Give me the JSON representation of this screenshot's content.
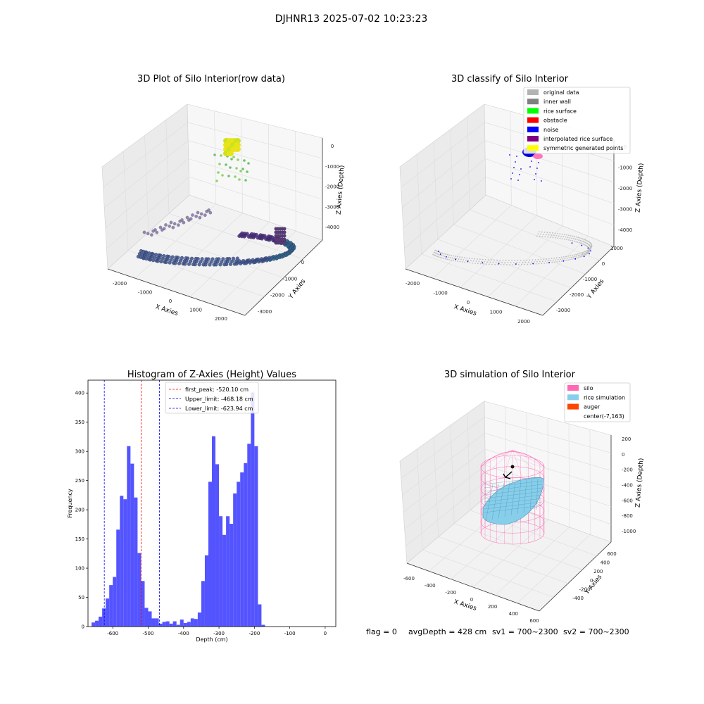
{
  "suptitle": "DJHNR13 2025-07-02 10:23:23",
  "footer": {
    "flag": "flag = 0",
    "avg": "avgDepth = 428 cm",
    "sv1": "sv1 = 700~2300",
    "sv2": "sv2 = 700~2300"
  },
  "chart_data": [
    {
      "type": "scatter",
      "projection": "3d",
      "title": "3D Plot of Silo Interior(row data)",
      "xlabel": "X Axies",
      "ylabel": "Y Axies",
      "zlabel": "Z Axies (Depth)",
      "xticks": [
        "-2000",
        "-1000",
        "0",
        "1000",
        "2000"
      ],
      "yticks": [
        "0",
        "-1000",
        "-2000",
        "-3000"
      ],
      "zticks": [
        "0",
        "-1000",
        "-2000",
        "-3000",
        "-4000"
      ],
      "colormap": "viridis",
      "grid": true
    },
    {
      "type": "scatter",
      "projection": "3d",
      "title": "3D classify of Silo Interior",
      "xlabel": "X Axies",
      "ylabel": "Y Axies",
      "zlabel": "Z Axies (Depth)",
      "xticks": [
        "-2000",
        "-1000",
        "0",
        "1000",
        "2000"
      ],
      "yticks": [
        "1000",
        "0",
        "-1000",
        "-2000",
        "-3000"
      ],
      "zticks": [
        "0",
        "-1000",
        "-2000",
        "-3000",
        "-4000"
      ],
      "legend_position": "top-right",
      "legend": [
        {
          "label": "original data",
          "color": "#b3b3b3"
        },
        {
          "label": "inner wall",
          "color": "#808080"
        },
        {
          "label": "rice surface",
          "color": "#00ff00"
        },
        {
          "label": "obstacle",
          "color": "#ff0000"
        },
        {
          "label": "noise",
          "color": "#0000ff"
        },
        {
          "label": "interpolated rice surface",
          "color": "#800080"
        },
        {
          "label": "symmetric generated points",
          "color": "#ffff00"
        }
      ],
      "grid": true
    },
    {
      "type": "bar",
      "title": "Histogram of Z-Axies (Height) Values",
      "xlabel": "Depth (cm)",
      "ylabel": "Frequency",
      "xlim": [
        -670,
        30
      ],
      "ylim": [
        0,
        422
      ],
      "xticks": [
        -600,
        -500,
        -400,
        -300,
        -200,
        -100,
        0
      ],
      "yticks": [
        0,
        50,
        100,
        150,
        200,
        250,
        300,
        350,
        400
      ],
      "bin_start": -660,
      "bin_width": 10,
      "values": [
        7,
        10,
        17,
        31,
        48,
        71,
        85,
        166,
        224,
        218,
        309,
        279,
        221,
        126,
        78,
        32,
        26,
        14,
        14,
        5,
        8,
        9,
        5,
        9,
        3,
        12,
        6,
        8,
        14,
        13,
        24,
        78,
        122,
        248,
        326,
        278,
        189,
        157,
        189,
        176,
        228,
        248,
        264,
        280,
        313,
        401,
        309,
        38,
        3
      ],
      "bar_color": "#4b4bff",
      "vlines": [
        {
          "label": "first_peak: -520.10 cm",
          "x": -520.1,
          "color": "#ff0000"
        },
        {
          "label": "Upper_limit: -468.18 cm",
          "x": -468.18,
          "color": "#0000ff"
        },
        {
          "label": "Lower_limit: -623.94 cm",
          "x": -623.94,
          "color": "#0000ff"
        }
      ],
      "legend_position": "top-left",
      "grid": false
    },
    {
      "type": "surface",
      "projection": "3d",
      "title": "3D simulation of Silo Interior",
      "xlabel": "X Axies",
      "ylabel": "Y Axies",
      "zlabel": "Z Axies (Depth)",
      "xticks": [
        "-600",
        "-400",
        "-200",
        "0",
        "200",
        "400",
        "600"
      ],
      "yticks": [
        "600",
        "400",
        "200",
        "0",
        "-200",
        "-400"
      ],
      "zticks": [
        "200",
        "0",
        "-200",
        "-400",
        "-600",
        "-800",
        "-1000"
      ],
      "legend_position": "top-right",
      "legend": [
        {
          "label": "silo",
          "color": "#ff69b4"
        },
        {
          "label": "rice simulation",
          "color": "#87ceeb"
        },
        {
          "label": "auger",
          "color": "#ff4500"
        },
        {
          "label": "center(-7,163)",
          "color": "none"
        }
      ],
      "grid": true
    }
  ]
}
